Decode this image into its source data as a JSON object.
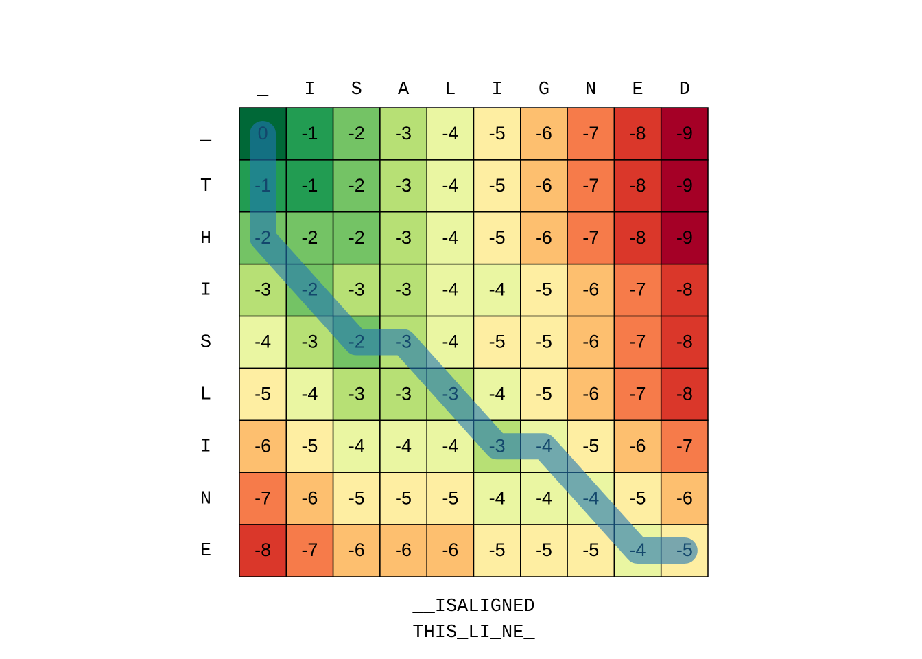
{
  "chart_data": {
    "type": "heatmap",
    "columns": [
      "_",
      "I",
      "S",
      "A",
      "L",
      "I",
      "G",
      "N",
      "E",
      "D"
    ],
    "rows": [
      "_",
      "T",
      "H",
      "I",
      "S",
      "L",
      "I",
      "N",
      "E"
    ],
    "values": [
      [
        0,
        -1,
        -2,
        -3,
        -4,
        -5,
        -6,
        -7,
        -8,
        -9
      ],
      [
        -1,
        -1,
        -2,
        -3,
        -4,
        -5,
        -6,
        -7,
        -8,
        -9
      ],
      [
        -2,
        -2,
        -2,
        -3,
        -4,
        -5,
        -6,
        -7,
        -8,
        -9
      ],
      [
        -3,
        -2,
        -3,
        -3,
        -4,
        -4,
        -5,
        -6,
        -7,
        -8
      ],
      [
        -4,
        -3,
        -2,
        -3,
        -4,
        -5,
        -5,
        -6,
        -7,
        -8
      ],
      [
        -5,
        -4,
        -3,
        -3,
        -3,
        -4,
        -5,
        -6,
        -7,
        -8
      ],
      [
        -6,
        -5,
        -4,
        -4,
        -4,
        -3,
        -4,
        -5,
        -6,
        -7
      ],
      [
        -7,
        -6,
        -5,
        -5,
        -5,
        -4,
        -4,
        -4,
        -5,
        -6
      ],
      [
        -8,
        -7,
        -6,
        -6,
        -6,
        -5,
        -5,
        -5,
        -4,
        -5
      ]
    ],
    "zlim": [
      -9,
      0
    ],
    "colormap": "RdYlGn",
    "path": {
      "color": "#1f77b4",
      "cells": [
        [
          0,
          0
        ],
        [
          1,
          0
        ],
        [
          2,
          0
        ],
        [
          3,
          1
        ],
        [
          4,
          2
        ],
        [
          4,
          3
        ],
        [
          5,
          4
        ],
        [
          6,
          5
        ],
        [
          6,
          6
        ],
        [
          7,
          7
        ],
        [
          8,
          8
        ],
        [
          8,
          9
        ]
      ]
    },
    "alignment": [
      "__ISALIGNED",
      "THIS_LI_NE_"
    ]
  }
}
